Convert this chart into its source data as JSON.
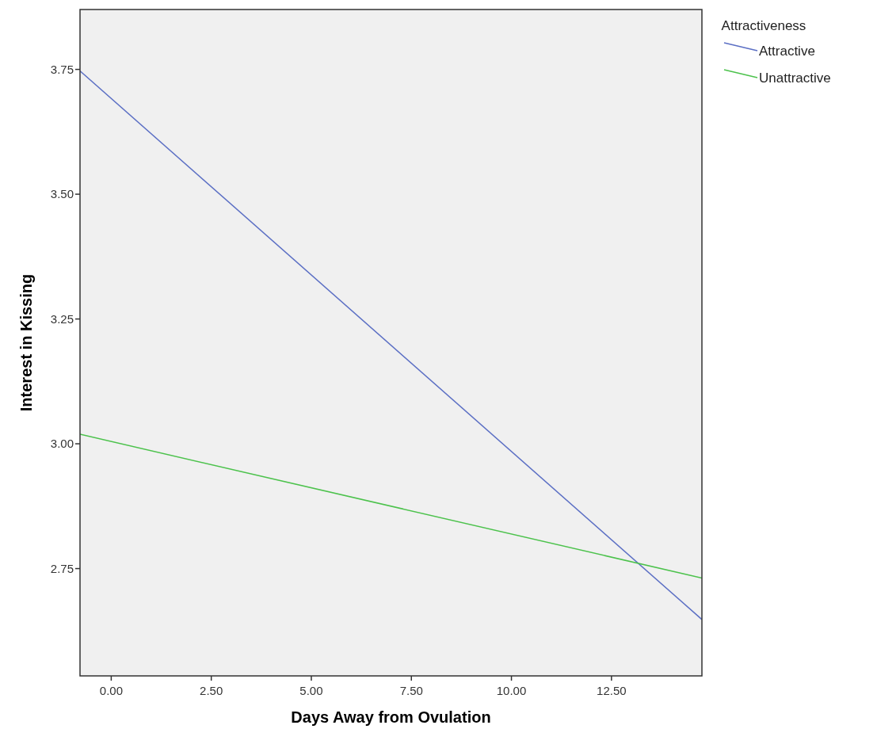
{
  "chart_data": {
    "type": "line",
    "xlabel": "Days Away from Ovulation",
    "ylabel": "Interest in Kissing",
    "legend_title": "Attractiveness",
    "xlim": [
      -0.78,
      14.76
    ],
    "ylim": [
      2.535,
      3.87
    ],
    "xticks": [
      {
        "value": 0,
        "label": "0.00"
      },
      {
        "value": 2.5,
        "label": "2.50"
      },
      {
        "value": 5,
        "label": "5.00"
      },
      {
        "value": 7.5,
        "label": "7.50"
      },
      {
        "value": 10,
        "label": "10.00"
      },
      {
        "value": 12.5,
        "label": "12.50"
      }
    ],
    "yticks": [
      {
        "value": 2.75,
        "label": "2.75"
      },
      {
        "value": 3,
        "label": "3.00"
      },
      {
        "value": 3.25,
        "label": "3.25"
      },
      {
        "value": 3.5,
        "label": "3.50"
      },
      {
        "value": 3.75,
        "label": "3.75"
      }
    ],
    "x": [
      -0.78,
      14.76
    ],
    "legend": "top right",
    "grid": false,
    "marker": "none",
    "line_style": "solid",
    "series": [
      {
        "name": "Attractive",
        "color": "#5b6fc4",
        "values": [
          3.747,
          2.648
        ]
      },
      {
        "name": "Unattractive",
        "color": "#4cc24c",
        "values": [
          3.019,
          2.731
        ]
      }
    ]
  }
}
